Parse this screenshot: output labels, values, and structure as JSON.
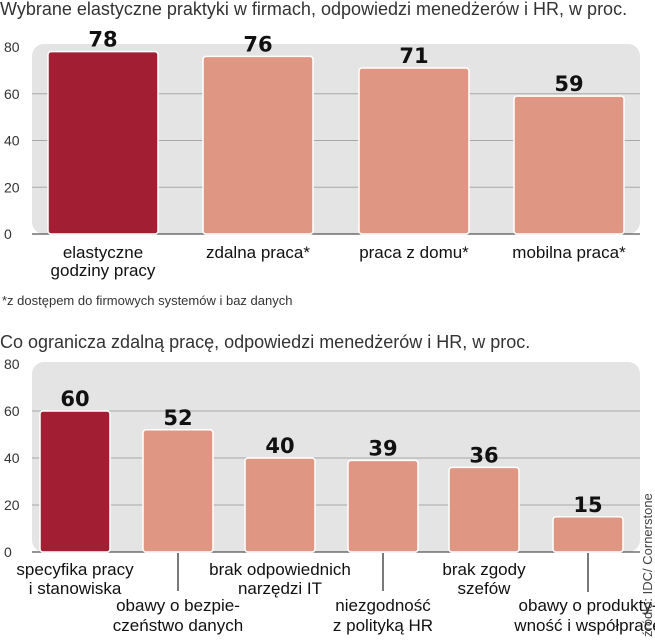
{
  "chart_data": [
    {
      "type": "bar",
      "title": "Wybrane elastyczne praktyki w firmach, odpowiedzi menedżerów i HR, w proc.",
      "categories": [
        [
          "elastyczne",
          "godziny pracy"
        ],
        [
          "zdalna praca*"
        ],
        [
          "praca z domu*"
        ],
        [
          "mobilna praca*"
        ]
      ],
      "values": [
        78,
        76,
        71,
        59
      ],
      "yticks": [
        "0",
        "20",
        "40",
        "60",
        "80"
      ],
      "ylim": [
        0,
        80
      ],
      "highlight_index": 0,
      "footnote": "*z dostępem do firmowych systemów i baz danych"
    },
    {
      "type": "bar",
      "title": "Co ogranicza zdalną pracę, odpowiedzi menedżerów i HR, w proc.",
      "categories": [
        [
          "specyfika pracy",
          "i stanowiska"
        ],
        [
          "obawy o bezpie-",
          "czeństwo danych"
        ],
        [
          "brak odpowiednich",
          "narzędzi IT"
        ],
        [
          "niezgodność",
          "z polityką HR"
        ],
        [
          "brak zgody",
          "szefów"
        ],
        [
          "obawy o produkty-",
          "wność i współpracę"
        ]
      ],
      "values": [
        60,
        52,
        40,
        39,
        36,
        15
      ],
      "yticks": [
        "0",
        "20",
        "40",
        "60",
        "80"
      ],
      "ylim": [
        0,
        80
      ],
      "highlight_index": 0
    }
  ],
  "source": "źródło: IDC/ Cornerstone",
  "colors": {
    "highlight": "#a21e33",
    "bar": "#df9683",
    "panel": "#e4e4e4",
    "grid": "#a8a8a8"
  }
}
